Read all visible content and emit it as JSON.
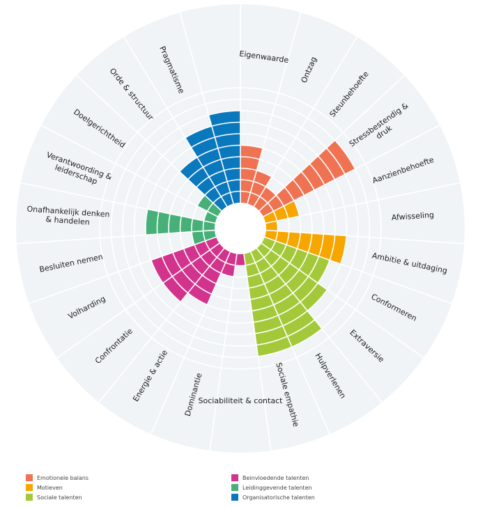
{
  "chart_data": {
    "type": "polar-bar",
    "max_level": 10,
    "categories": [
      {
        "label": "Eigenwaarde",
        "group": "Emotionele balans",
        "value": 5
      },
      {
        "label": "Ontzag",
        "group": "Emotionele balans",
        "value": 3
      },
      {
        "label": "Steunbehoefte",
        "group": "Emotionele balans",
        "value": 2
      },
      {
        "label": "Stressbestendig & druk",
        "group": "Emotionele balans",
        "value": 9
      },
      {
        "label": "Aanzienbehoefte",
        "group": "Motieven",
        "value": 3
      },
      {
        "label": "Afwisseling",
        "group": "Motieven",
        "value": 1
      },
      {
        "label": "Ambitie & uitdaging",
        "group": "Motieven",
        "value": 7
      },
      {
        "label": "Conformeren",
        "group": "Sociale talenten",
        "value": 6
      },
      {
        "label": "Extraversie",
        "group": "Sociale talenten",
        "value": 7
      },
      {
        "label": "Hulpverlenen",
        "group": "Sociale talenten",
        "value": 9
      },
      {
        "label": "Sociale empathie",
        "group": "Sociale talenten",
        "value": 9
      },
      {
        "label": "Sociabiliteit & contact",
        "group": "Beinvloedende talenten",
        "value": 1
      },
      {
        "label": "Dominantie",
        "group": "Beinvloedende talenten",
        "value": 2
      },
      {
        "label": "Energie & actie",
        "group": "Beinvloedende talenten",
        "value": 5
      },
      {
        "label": "Confrontatie",
        "group": "Beinvloedende talenten",
        "value": 6
      },
      {
        "label": "Volharding",
        "group": "Beinvloedende talenten",
        "value": 6
      },
      {
        "label": "Besluiten nemen",
        "group": "Leidinggevende talenten",
        "value": 2
      },
      {
        "label": "Onafhankelijk denken & handelen",
        "group": "Leidinggevende talenten",
        "value": 6
      },
      {
        "label": "Verantwoording & leiderschap",
        "group": "Leidinggevende talenten",
        "value": 1
      },
      {
        "label": "Doelgerichtheid",
        "group": "Leidinggevende talenten",
        "value": 2
      },
      {
        "label": "Orde & structuur",
        "group": "Organisatorische talenten",
        "value": 5
      },
      {
        "label": "Pragmatisme",
        "group": "Organisatorische talenten",
        "value": 7
      },
      {
        "label": "",
        "group": "Organisatorische talenten",
        "value": 8
      }
    ],
    "legend": [
      {
        "label": "Emotionele balans",
        "color": "#ef7352"
      },
      {
        "label": "Motieven",
        "color": "#f7a600"
      },
      {
        "label": "Sociale talenten",
        "color": "#a3c93a"
      },
      {
        "label": "Beinvloedende talenten",
        "color": "#d2338c"
      },
      {
        "label": "Leidinggevende talenten",
        "color": "#46b078"
      },
      {
        "label": "Organisatorische talenten",
        "color": "#0a78bd"
      }
    ],
    "background_color": "#f1f4f7",
    "grid_color": "#ffffff"
  }
}
